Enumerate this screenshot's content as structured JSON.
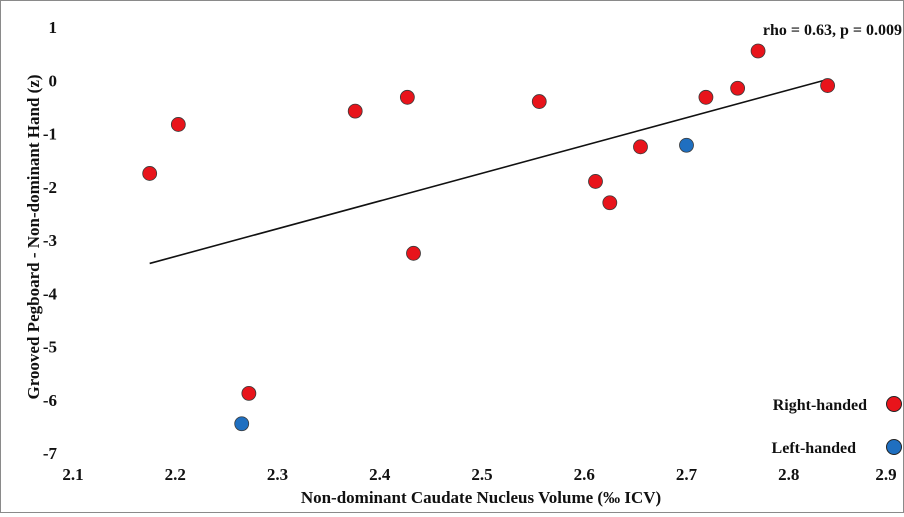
{
  "chart_data": {
    "type": "scatter",
    "title": "",
    "annotation": "rho = 0.63, p = 0.009",
    "xlabel": "Non-dominant Caudate Nucleus Volume (‰ ICV)",
    "ylabel": "Grooved Pegboard - Non-dominant Hand (z)",
    "xlim": [
      2.1,
      2.9
    ],
    "ylim": [
      -7,
      1
    ],
    "xticks": [
      2.1,
      2.2,
      2.3,
      2.4,
      2.5,
      2.6,
      2.7,
      2.8,
      2.9
    ],
    "xtick_labels": [
      "2.1",
      "2.2",
      "2.3",
      "2.4",
      "2.5",
      "2.6",
      "2.7",
      "2.8",
      "2.9"
    ],
    "yticks": [
      1,
      0,
      -1,
      -2,
      -3,
      -4,
      -5,
      -6,
      -7
    ],
    "ytick_labels": [
      "1",
      "0",
      "-1",
      "-2",
      "-3",
      "-4",
      "-5",
      "-6",
      "-7"
    ],
    "grid": false,
    "legend_position": "bottom-right",
    "series": [
      {
        "name": "Right-handed",
        "color": "#e8141b",
        "x": [
          2.175,
          2.203,
          2.272,
          2.376,
          2.427,
          2.433,
          2.556,
          2.611,
          2.625,
          2.655,
          2.719,
          2.75,
          2.77,
          2.838
        ],
        "y": [
          -1.75,
          -0.83,
          -5.88,
          -0.58,
          -0.32,
          -3.25,
          -0.4,
          -1.9,
          -2.3,
          -1.25,
          -0.32,
          -0.15,
          0.55,
          -0.1
        ]
      },
      {
        "name": "Left-handed",
        "color": "#1f6fc0",
        "x": [
          2.265,
          2.7
        ],
        "y": [
          -6.45,
          -1.22
        ]
      }
    ],
    "trendline": {
      "color": "#111111",
      "x": [
        2.175,
        2.835
      ],
      "y": [
        -3.44,
        0.0
      ]
    }
  }
}
